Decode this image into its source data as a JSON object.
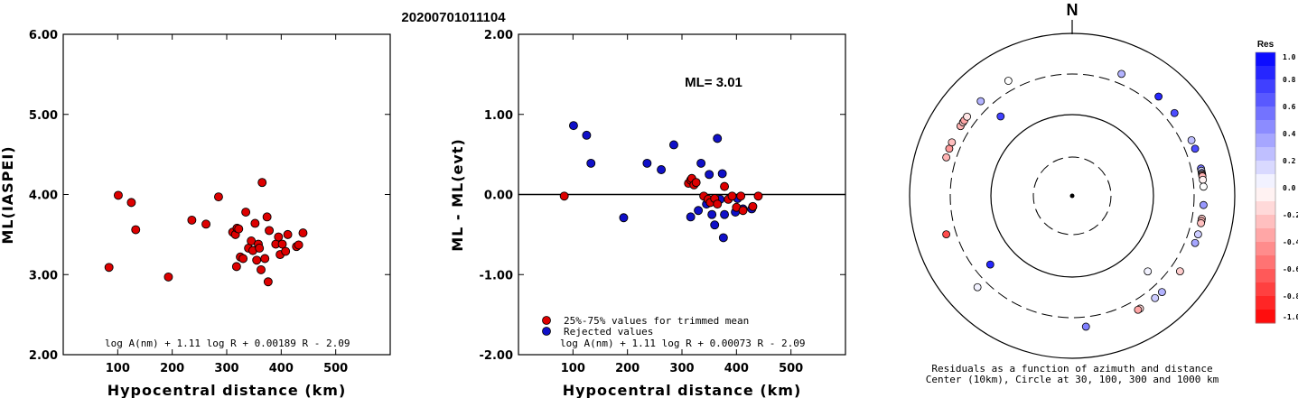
{
  "page_title": "20200701011104",
  "chart_data": [
    {
      "type": "scatter",
      "title": "",
      "xlabel": "Hypocentral distance (km)",
      "ylabel": "ML(IASPEI)",
      "xlim": [
        0,
        600
      ],
      "ylim": [
        2.0,
        6.0
      ],
      "x_ticks": [
        "100",
        "200",
        "300",
        "400",
        "500"
      ],
      "y_ticks": [
        "2.00",
        "3.00",
        "4.00",
        "5.00",
        "6.00"
      ],
      "formula": "log A(nm) + 1.11 log R + 0.00189 R - 2.09",
      "point_color": "#dd0000",
      "points": [
        [
          84,
          3.09
        ],
        [
          101,
          3.99
        ],
        [
          125,
          3.9
        ],
        [
          133,
          3.56
        ],
        [
          193,
          2.97
        ],
        [
          236,
          3.68
        ],
        [
          262,
          3.63
        ],
        [
          285,
          3.97
        ],
        [
          311,
          3.53
        ],
        [
          316,
          3.5
        ],
        [
          318,
          3.1
        ],
        [
          319,
          3.58
        ],
        [
          322,
          3.57
        ],
        [
          325,
          3.22
        ],
        [
          330,
          3.2
        ],
        [
          335,
          3.78
        ],
        [
          340,
          3.33
        ],
        [
          345,
          3.42
        ],
        [
          348,
          3.3
        ],
        [
          352,
          3.64
        ],
        [
          355,
          3.18
        ],
        [
          358,
          3.38
        ],
        [
          360,
          3.33
        ],
        [
          363,
          3.06
        ],
        [
          365,
          4.15
        ],
        [
          370,
          3.2
        ],
        [
          374,
          3.72
        ],
        [
          376,
          2.91
        ],
        [
          378,
          3.55
        ],
        [
          390,
          3.38
        ],
        [
          395,
          3.47
        ],
        [
          398,
          3.25
        ],
        [
          402,
          3.38
        ],
        [
          408,
          3.29
        ],
        [
          412,
          3.5
        ],
        [
          428,
          3.35
        ],
        [
          432,
          3.37
        ],
        [
          440,
          3.52
        ]
      ]
    },
    {
      "type": "scatter",
      "title": "",
      "xlabel": "Hypocentral distance (km)",
      "ylabel": "ML - ML(evt)",
      "xlim": [
        0,
        600
      ],
      "ylim": [
        -2.0,
        2.0
      ],
      "x_ticks": [
        "100",
        "200",
        "300",
        "400",
        "500"
      ],
      "y_ticks": [
        "-2.00",
        "-1.00",
        "0.00",
        "1.00",
        "2.00"
      ],
      "ml_label": "ML= 3.01",
      "formula": "log A(nm) + 1.11 log R + 0.00073 R - 2.09",
      "legend": [
        {
          "label": "25%-75% values for trimmed mean",
          "color": "#dd0000"
        },
        {
          "label": "Rejected values",
          "color": "#1010c8"
        }
      ],
      "series": [
        {
          "name": "25%-75% values for trimmed mean",
          "color": "#dd0000",
          "points": [
            [
              84,
              -0.02
            ],
            [
              312,
              0.14
            ],
            [
              316,
              0.18
            ],
            [
              318,
              0.2
            ],
            [
              322,
              0.12
            ],
            [
              326,
              0.15
            ],
            [
              340,
              -0.02
            ],
            [
              348,
              -0.06
            ],
            [
              352,
              -0.1
            ],
            [
              360,
              -0.05
            ],
            [
              365,
              -0.12
            ],
            [
              378,
              0.1
            ],
            [
              385,
              -0.06
            ],
            [
              392,
              -0.02
            ],
            [
              400,
              -0.16
            ],
            [
              408,
              -0.02
            ],
            [
              412,
              -0.2
            ],
            [
              430,
              -0.15
            ],
            [
              440,
              -0.02
            ]
          ]
        },
        {
          "name": "Rejected values",
          "color": "#1010c8",
          "points": [
            [
              101,
              0.86
            ],
            [
              125,
              0.74
            ],
            [
              133,
              0.39
            ],
            [
              193,
              -0.29
            ],
            [
              236,
              0.39
            ],
            [
              262,
              0.31
            ],
            [
              285,
              0.62
            ],
            [
              316,
              -0.28
            ],
            [
              330,
              -0.2
            ],
            [
              335,
              0.39
            ],
            [
              345,
              -0.12
            ],
            [
              350,
              0.25
            ],
            [
              355,
              -0.25
            ],
            [
              360,
              -0.38
            ],
            [
              365,
              0.7
            ],
            [
              370,
              -0.06
            ],
            [
              374,
              0.26
            ],
            [
              376,
              -0.54
            ],
            [
              378,
              -0.25
            ],
            [
              398,
              -0.22
            ],
            [
              402,
              -0.05
            ],
            [
              412,
              -0.18
            ],
            [
              428,
              -0.18
            ]
          ]
        }
      ]
    },
    {
      "type": "scatter",
      "subtype": "polar",
      "north_label": "N",
      "caption_line1": "Residuals as a function of azimuth and distance",
      "caption_line2": "Center (10km), Circle at 30, 100, 300 and 1000 km",
      "colorbar_title": "Res",
      "colorbar_ticks": [
        "1.0",
        "0.8",
        "0.6",
        "0.4",
        "0.2",
        "0.0",
        "-0.2",
        "-0.4",
        "-0.6",
        "-0.8",
        "-1.0"
      ],
      "points": [
        {
          "azimuth": 22,
          "distance": 400,
          "res": 0.3
        },
        {
          "azimuth": 41,
          "distance": 400,
          "res": 0.85
        },
        {
          "azimuth": 51,
          "distance": 400,
          "res": 0.7
        },
        {
          "azimuth": 65,
          "distance": 400,
          "res": 0.25
        },
        {
          "azimuth": 69,
          "distance": 400,
          "res": 0.7
        },
        {
          "azimuth": 78,
          "distance": 400,
          "res": 0.55
        },
        {
          "azimuth": 79,
          "distance": 400,
          "res": 0.15
        },
        {
          "azimuth": 80,
          "distance": 400,
          "res": 0.3
        },
        {
          "azimuth": 80.5,
          "distance": 400,
          "res": 0.05
        },
        {
          "azimuth": 81,
          "distance": 400,
          "res": -0.5
        },
        {
          "azimuth": 81.5,
          "distance": 400,
          "res": -0.3
        },
        {
          "azimuth": 83,
          "distance": 400,
          "res": -0.05
        },
        {
          "azimuth": 86,
          "distance": 400,
          "res": 0.0
        },
        {
          "azimuth": 94,
          "distance": 400,
          "res": 0.4
        },
        {
          "azimuth": 100,
          "distance": 400,
          "res": -0.2
        },
        {
          "azimuth": 101,
          "distance": 400,
          "res": -0.3
        },
        {
          "azimuth": 102,
          "distance": 400,
          "res": -0.25
        },
        {
          "azimuth": 107,
          "distance": 400,
          "res": 0.2
        },
        {
          "azimuth": 111,
          "distance": 400,
          "res": 0.35
        },
        {
          "azimuth": 125,
          "distance": 400,
          "res": -0.2
        },
        {
          "azimuth": 137,
          "distance": 400,
          "res": 0.3
        },
        {
          "azimuth": 141,
          "distance": 400,
          "res": 0.2
        },
        {
          "azimuth": 149,
          "distance": 400,
          "res": -0.15
        },
        {
          "azimuth": 150,
          "distance": 400,
          "res": -0.35
        },
        {
          "azimuth": 174,
          "distance": 400,
          "res": 0.5
        },
        {
          "azimuth": 226,
          "distance": 400,
          "res": 0.05
        },
        {
          "azimuth": 253,
          "distance": 400,
          "res": -0.7
        },
        {
          "azimuth": 287,
          "distance": 400,
          "res": -0.3
        },
        {
          "azimuth": 291,
          "distance": 400,
          "res": -0.4
        },
        {
          "azimuth": 294,
          "distance": 400,
          "res": -0.25
        },
        {
          "azimuth": 302,
          "distance": 400,
          "res": -0.3
        },
        {
          "azimuth": 304,
          "distance": 400,
          "res": -0.2
        },
        {
          "azimuth": 305,
          "distance": 400,
          "res": -0.35
        },
        {
          "azimuth": 307,
          "distance": 400,
          "res": -0.1
        },
        {
          "azimuth": 316,
          "distance": 400,
          "res": 0.3
        },
        {
          "azimuth": 331,
          "distance": 400,
          "res": 0.0
        },
        {
          "azimuth": 135,
          "distance": 200,
          "res": 0.05
        },
        {
          "azimuth": 230,
          "distance": 200,
          "res": 0.85
        },
        {
          "azimuth": 318,
          "distance": 200,
          "res": 0.75
        }
      ]
    }
  ]
}
